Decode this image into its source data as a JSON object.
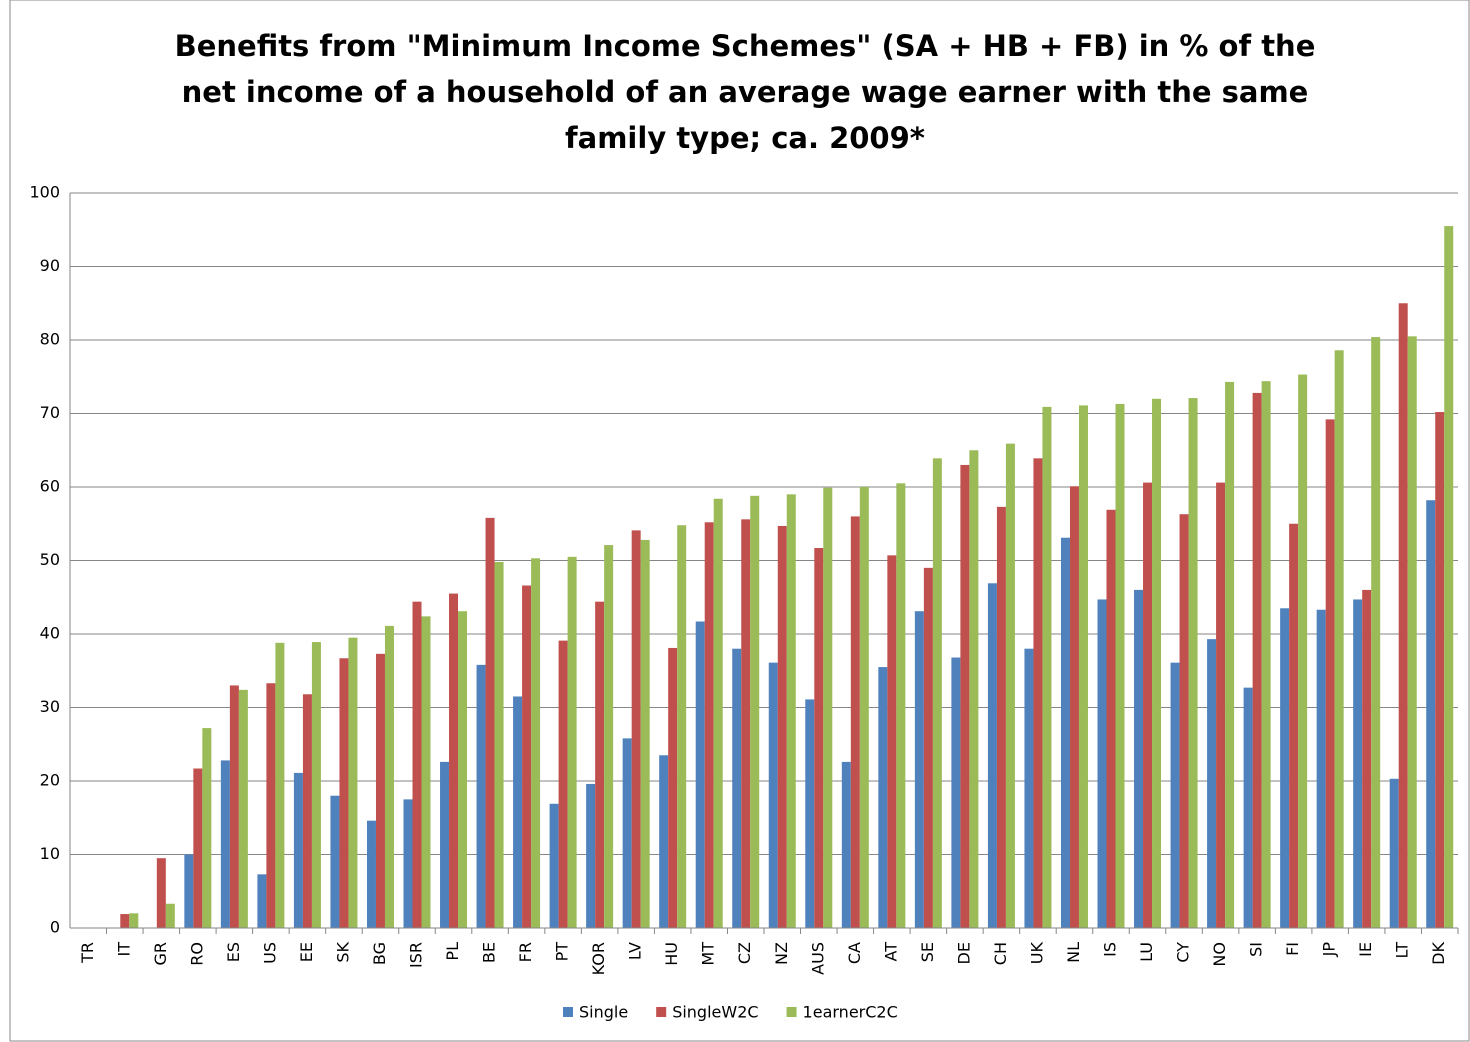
{
  "chart_data": {
    "type": "bar",
    "title": [
      "Benefits from \"Minimum Income Schemes\" (SA + HB + FB) in % of the",
      "net income of a household of an average wage earner with the same",
      "family type; ca. 2009*"
    ],
    "categories": [
      "TR",
      "IT",
      "GR",
      "RO",
      "ES",
      "US",
      "EE",
      "SK",
      "BG",
      "ISR",
      "PL",
      "BE",
      "FR",
      "PT",
      "KOR",
      "LV",
      "HU",
      "MT",
      "CZ",
      "NZ",
      "AUS",
      "CA",
      "AT",
      "SE",
      "DE",
      "CH",
      "UK",
      "NL",
      "IS",
      "LU",
      "CY",
      "NO",
      "SI",
      "FI",
      "JP",
      "IE",
      "LT",
      "DK"
    ],
    "series": [
      {
        "name": "Single",
        "color": "#4f81bd",
        "values": [
          0,
          0,
          0,
          10,
          22.8,
          7.3,
          21.1,
          18,
          14.6,
          17.5,
          22.6,
          35.8,
          31.5,
          16.9,
          19.6,
          25.8,
          23.5,
          41.7,
          38,
          36.1,
          31.1,
          22.6,
          35.5,
          43.1,
          36.8,
          46.9,
          38,
          53.1,
          44.7,
          46,
          36.1,
          39.3,
          32.7,
          43.5,
          43.3,
          44.7,
          20.3,
          58.2
        ]
      },
      {
        "name": "SingleW2C",
        "color": "#c0504d",
        "values": [
          0,
          1.9,
          9.5,
          21.7,
          33,
          33.3,
          31.8,
          36.7,
          37.3,
          44.4,
          45.5,
          55.8,
          46.6,
          39.1,
          44.4,
          54.1,
          38.1,
          55.2,
          55.6,
          54.7,
          51.7,
          56,
          50.7,
          49,
          63,
          57.3,
          63.9,
          60.1,
          56.9,
          60.6,
          56.3,
          60.6,
          72.8,
          55,
          69.2,
          46,
          85,
          70.2
        ]
      },
      {
        "name": "1earnerC2C",
        "color": "#9bbb59",
        "values": [
          0,
          2,
          3.3,
          27.2,
          32.4,
          38.8,
          38.9,
          39.5,
          41.1,
          42.4,
          43.1,
          49.8,
          50.3,
          50.5,
          52.1,
          52.8,
          54.8,
          58.4,
          58.8,
          59,
          59.9,
          60,
          60.5,
          63.9,
          65,
          65.9,
          70.9,
          71.1,
          71.3,
          72,
          72.1,
          74.3,
          74.4,
          75.3,
          78.6,
          80.4,
          80.5,
          95.5
        ]
      }
    ],
    "ylim": [
      0,
      100
    ],
    "yticks": [
      0,
      10,
      20,
      30,
      40,
      50,
      60,
      70,
      80,
      90,
      100
    ],
    "grid": true,
    "legend": "bottom"
  }
}
